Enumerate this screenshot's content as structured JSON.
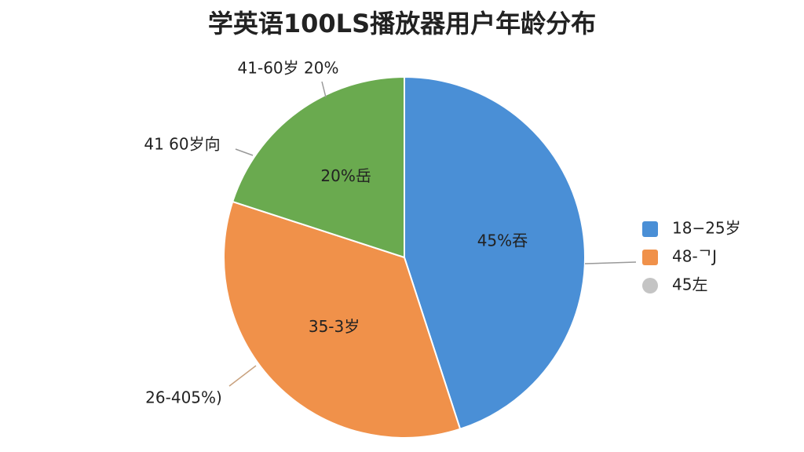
{
  "chart_data": {
    "type": "pie",
    "title": "学英语100LS播放器用户年龄分布",
    "categories": [
      "18−25岁",
      "48-ᄀJ",
      "45左"
    ],
    "values": [
      45,
      35,
      20
    ],
    "value_labels": [
      "45%吞",
      "35-3岁",
      "20%岳"
    ],
    "colors": [
      "#4a8fd6",
      "#f0914a",
      "#6aaa4f"
    ],
    "legend_colors": [
      "#4a8fd6",
      "#f0914a",
      "#c4c4c4"
    ],
    "annotations": [
      "41-60岁 20%",
      "41 60岁向",
      "26-405%)"
    ],
    "legend": "right"
  }
}
